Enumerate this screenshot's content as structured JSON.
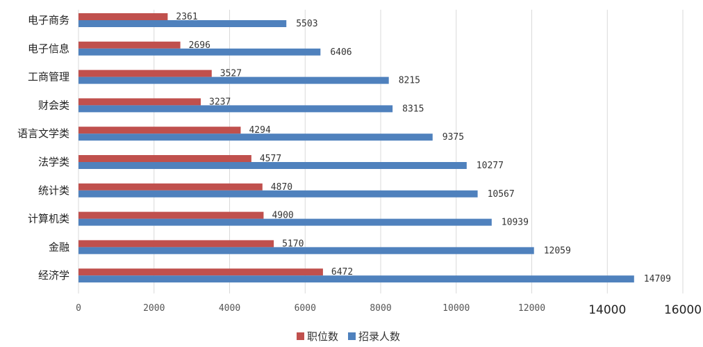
{
  "chart_data": {
    "type": "bar",
    "orientation": "horizontal",
    "categories": [
      "电子商务",
      "电子信息",
      "工商管理",
      "财会类",
      "语言文学类",
      "法学类",
      "统计类",
      "计算机类",
      "金融",
      "经济学"
    ],
    "series": [
      {
        "name": "职位数",
        "color": "#c0504d",
        "values": [
          2361,
          2696,
          3527,
          3237,
          4294,
          4577,
          4870,
          4900,
          5170,
          6472
        ]
      },
      {
        "name": "招录人数",
        "color": "#4f81bd",
        "values": [
          5503,
          6406,
          8215,
          8315,
          9375,
          10277,
          10567,
          10939,
          12059,
          14709
        ]
      }
    ],
    "xlim": [
      0,
      16000
    ],
    "x_ticks": [
      0,
      2000,
      4000,
      6000,
      8000,
      10000,
      12000,
      14000,
      16000
    ],
    "x_tick_labels": [
      "0",
      "2000",
      "4000",
      "6000",
      "8000",
      "10000",
      "12000",
      "14000",
      "16000"
    ],
    "grid": "vertical",
    "legend_position": "bottom",
    "title": "",
    "xlabel": "",
    "ylabel": ""
  }
}
